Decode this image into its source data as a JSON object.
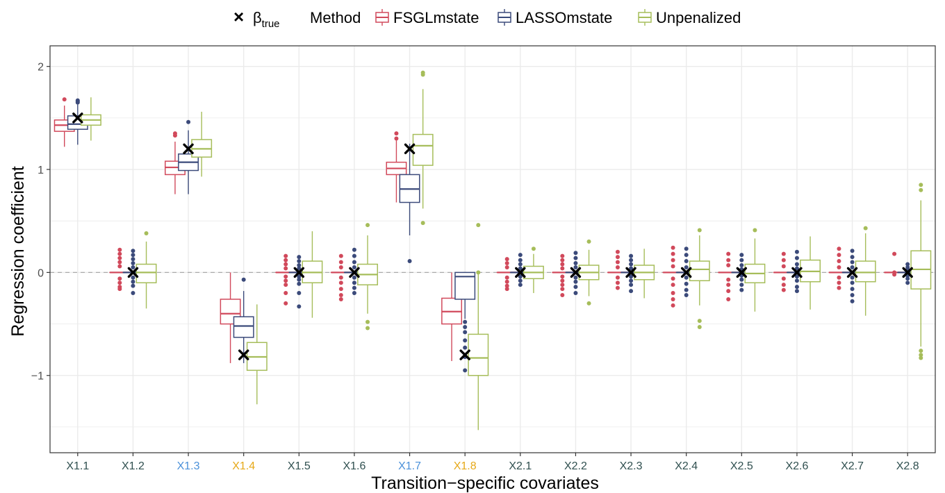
{
  "chart_data": {
    "type": "boxplot",
    "xlabel": "Transition−specific covariates",
    "ylabel": "Regression coefficient",
    "ylim": [
      -1.75,
      2.2
    ],
    "yticks": [
      -1,
      0,
      1,
      2
    ],
    "ytick_labels": [
      "−1",
      "0",
      "1",
      "2"
    ],
    "grid": true,
    "reference_line": 0,
    "legend": {
      "position": "top",
      "marker_symbol": "×",
      "marker_label_base": "β",
      "marker_label_sub": "true",
      "title": "Method"
    },
    "series": [
      {
        "name": "FSGLmstate",
        "color": "#d1495b"
      },
      {
        "name": "LASSOmstate",
        "color": "#3b4a7a"
      },
      {
        "name": "Unpenalized",
        "color": "#a6bd5a"
      }
    ],
    "categories": [
      {
        "label": "X1.1",
        "color": "#2f4f4f",
        "beta_true": 1.5,
        "boxes": [
          {
            "q1": 1.37,
            "median": 1.43,
            "q3": 1.48,
            "wlow": 1.22,
            "whigh": 1.62,
            "out": [
              1.68
            ]
          },
          {
            "q1": 1.39,
            "median": 1.44,
            "q3": 1.52,
            "wlow": 1.24,
            "whigh": 1.63,
            "out": [
              1.66,
              1.65,
              1.67
            ]
          },
          {
            "q1": 1.43,
            "median": 1.48,
            "q3": 1.53,
            "wlow": 1.28,
            "whigh": 1.7,
            "out": []
          }
        ]
      },
      {
        "label": "X1.2",
        "color": "#2f4f4f",
        "beta_true": 0,
        "boxes": [
          {
            "q1": 0,
            "median": 0,
            "q3": 0,
            "wlow": 0,
            "whigh": 0,
            "out": [
              0.22,
              0.18,
              0.14,
              0.1,
              0.06,
              -0.06,
              -0.1,
              -0.14,
              -0.16
            ]
          },
          {
            "q1": 0,
            "median": 0,
            "q3": 0,
            "wlow": 0,
            "whigh": 0,
            "out": [
              0.21,
              0.17,
              0.13,
              0.09,
              0.05,
              -0.05,
              -0.09,
              -0.13,
              -0.2
            ]
          },
          {
            "q1": -0.1,
            "median": 0,
            "q3": 0.08,
            "wlow": -0.35,
            "whigh": 0.3,
            "out": [
              0.38
            ]
          }
        ]
      },
      {
        "label": "X1.3",
        "color": "#4a90d9",
        "beta_true": 1.2,
        "boxes": [
          {
            "q1": 0.95,
            "median": 1.02,
            "q3": 1.08,
            "wlow": 0.76,
            "whigh": 1.27,
            "out": [
              1.33,
              1.35
            ]
          },
          {
            "q1": 0.99,
            "median": 1.07,
            "q3": 1.15,
            "wlow": 0.76,
            "whigh": 1.38,
            "out": [
              1.46
            ]
          },
          {
            "q1": 1.12,
            "median": 1.2,
            "q3": 1.29,
            "wlow": 0.93,
            "whigh": 1.56,
            "out": []
          }
        ]
      },
      {
        "label": "X1.4",
        "color": "#e6a817",
        "beta_true": -0.8,
        "boxes": [
          {
            "q1": -0.5,
            "median": -0.4,
            "q3": -0.26,
            "wlow": -0.88,
            "whigh": 0,
            "out": []
          },
          {
            "q1": -0.63,
            "median": -0.52,
            "q3": -0.43,
            "wlow": -0.88,
            "whigh": -0.18,
            "out": [
              -0.07
            ]
          },
          {
            "q1": -0.95,
            "median": -0.82,
            "q3": -0.68,
            "wlow": -1.28,
            "whigh": -0.31,
            "out": []
          }
        ]
      },
      {
        "label": "X1.5",
        "color": "#2f4f4f",
        "beta_true": 0,
        "boxes": [
          {
            "q1": 0,
            "median": 0,
            "q3": 0,
            "wlow": 0,
            "whigh": 0,
            "out": [
              0.16,
              0.12,
              0.08,
              0.04,
              -0.04,
              -0.08,
              -0.12,
              -0.2,
              -0.3
            ]
          },
          {
            "q1": 0,
            "median": 0,
            "q3": 0,
            "wlow": 0,
            "whigh": 0,
            "out": [
              0.15,
              0.11,
              0.07,
              0.04,
              -0.04,
              -0.07,
              -0.11,
              -0.2,
              -0.33
            ]
          },
          {
            "q1": -0.1,
            "median": 0,
            "q3": 0.11,
            "wlow": -0.44,
            "whigh": 0.4,
            "out": []
          }
        ]
      },
      {
        "label": "X1.6",
        "color": "#2f4f4f",
        "beta_true": 0,
        "boxes": [
          {
            "q1": 0,
            "median": 0,
            "q3": 0,
            "wlow": 0,
            "whigh": 0,
            "out": [
              0.16,
              0.1,
              0.05,
              -0.05,
              -0.1,
              -0.16,
              -0.22,
              -0.26
            ]
          },
          {
            "q1": 0,
            "median": 0,
            "q3": 0,
            "wlow": 0,
            "whigh": 0,
            "out": [
              0.22,
              0.16,
              0.1,
              0.05,
              -0.05,
              -0.1,
              -0.15,
              -0.2
            ]
          },
          {
            "q1": -0.12,
            "median": -0.02,
            "q3": 0.08,
            "wlow": -0.4,
            "whigh": 0.36,
            "out": [
              0.46,
              -0.48,
              -0.54
            ]
          }
        ]
      },
      {
        "label": "X1.7",
        "color": "#4a90d9",
        "beta_true": 1.2,
        "boxes": [
          {
            "q1": 0.95,
            "median": 1.01,
            "q3": 1.07,
            "wlow": 0.68,
            "whigh": 1.28,
            "out": [
              1.3,
              1.35
            ]
          },
          {
            "q1": 0.68,
            "median": 0.81,
            "q3": 0.95,
            "wlow": 0.36,
            "whigh": 1.25,
            "out": [
              0.11
            ]
          },
          {
            "q1": 1.04,
            "median": 1.23,
            "q3": 1.34,
            "wlow": 0.62,
            "whigh": 1.78,
            "out": [
              1.92,
              1.94,
              0.48
            ]
          }
        ]
      },
      {
        "label": "X1.8",
        "color": "#e6a817",
        "beta_true": -0.8,
        "boxes": [
          {
            "q1": -0.5,
            "median": -0.38,
            "q3": -0.25,
            "wlow": -0.86,
            "whigh": 0,
            "out": []
          },
          {
            "q1": -0.26,
            "median": -0.04,
            "q3": 0,
            "wlow": -0.45,
            "whigh": 0,
            "out": [
              -0.48,
              -0.53,
              -0.58,
              -0.66,
              -0.73,
              -0.82,
              -0.95
            ]
          },
          {
            "q1": -1.0,
            "median": -0.83,
            "q3": -0.6,
            "wlow": -1.53,
            "whigh": 0,
            "out": [
              0.46,
              0.0
            ]
          }
        ]
      },
      {
        "label": "X2.1",
        "color": "#2f4f4f",
        "beta_true": 0,
        "boxes": [
          {
            "q1": 0,
            "median": 0,
            "q3": 0,
            "wlow": 0,
            "whigh": 0,
            "out": [
              0.13,
              0.09,
              0.05,
              -0.05,
              -0.09,
              -0.13,
              -0.16
            ]
          },
          {
            "q1": 0,
            "median": 0,
            "q3": 0,
            "wlow": 0,
            "whigh": 0,
            "out": [
              0.17,
              0.12,
              0.08,
              0.04,
              -0.04,
              -0.08,
              -0.12
            ]
          },
          {
            "q1": -0.06,
            "median": 0,
            "q3": 0.06,
            "wlow": -0.2,
            "whigh": 0.18,
            "out": [
              0.23
            ]
          }
        ]
      },
      {
        "label": "X2.2",
        "color": "#2f4f4f",
        "beta_true": 0,
        "boxes": [
          {
            "q1": 0,
            "median": 0,
            "q3": 0,
            "wlow": 0,
            "whigh": 0,
            "out": [
              0.16,
              0.12,
              0.08,
              0.04,
              -0.04,
              -0.08,
              -0.12,
              -0.16,
              -0.22
            ]
          },
          {
            "q1": 0,
            "median": 0,
            "q3": 0,
            "wlow": 0,
            "whigh": 0,
            "out": [
              0.19,
              0.14,
              0.09,
              0.05,
              -0.05,
              -0.09,
              -0.14,
              -0.2
            ]
          },
          {
            "q1": -0.07,
            "median": 0,
            "q3": 0.07,
            "wlow": -0.23,
            "whigh": 0.22,
            "out": [
              0.3,
              -0.3
            ]
          }
        ]
      },
      {
        "label": "X2.3",
        "color": "#2f4f4f",
        "beta_true": 0,
        "boxes": [
          {
            "q1": 0,
            "median": 0,
            "q3": 0,
            "wlow": 0,
            "whigh": 0,
            "out": [
              0.2,
              0.15,
              0.1,
              0.05,
              -0.05,
              -0.1,
              -0.15
            ]
          },
          {
            "q1": 0,
            "median": 0,
            "q3": 0,
            "wlow": 0,
            "whigh": 0,
            "out": [
              0.16,
              0.12,
              0.08,
              0.04,
              -0.04,
              -0.08,
              -0.12,
              -0.18
            ]
          },
          {
            "q1": -0.07,
            "median": 0,
            "q3": 0.07,
            "wlow": -0.25,
            "whigh": 0.23,
            "out": []
          }
        ]
      },
      {
        "label": "X2.4",
        "color": "#2f4f4f",
        "beta_true": 0,
        "boxes": [
          {
            "q1": 0,
            "median": 0,
            "q3": 0,
            "wlow": 0,
            "whigh": 0,
            "out": [
              0.24,
              0.18,
              0.12,
              0.06,
              -0.06,
              -0.12,
              -0.2,
              -0.26,
              -0.32
            ]
          },
          {
            "q1": 0,
            "median": 0,
            "q3": 0,
            "wlow": 0,
            "whigh": 0,
            "out": [
              0.23,
              0.17,
              0.11,
              0.05,
              -0.05,
              -0.11,
              -0.17,
              -0.22
            ]
          },
          {
            "q1": -0.08,
            "median": 0.03,
            "q3": 0.11,
            "wlow": -0.32,
            "whigh": 0.36,
            "out": [
              0.41,
              -0.47,
              -0.53
            ]
          }
        ]
      },
      {
        "label": "X2.5",
        "color": "#2f4f4f",
        "beta_true": 0,
        "boxes": [
          {
            "q1": 0,
            "median": 0,
            "q3": 0,
            "wlow": 0,
            "whigh": 0,
            "out": [
              0.18,
              0.12,
              0.07,
              -0.07,
              -0.12,
              -0.18,
              -0.26
            ]
          },
          {
            "q1": 0,
            "median": 0,
            "q3": 0,
            "wlow": 0,
            "whigh": 0,
            "out": [
              0.17,
              0.12,
              0.07,
              0.03,
              -0.03,
              -0.07,
              -0.12,
              -0.17
            ]
          },
          {
            "q1": -0.1,
            "median": -0.01,
            "q3": 0.08,
            "wlow": -0.38,
            "whigh": 0.33,
            "out": [
              0.41
            ]
          }
        ]
      },
      {
        "label": "X2.6",
        "color": "#2f4f4f",
        "beta_true": 0,
        "boxes": [
          {
            "q1": 0,
            "median": 0,
            "q3": 0,
            "wlow": 0,
            "whigh": 0,
            "out": [
              0.18,
              0.12,
              0.06,
              -0.06,
              -0.12,
              -0.17
            ]
          },
          {
            "q1": 0,
            "median": 0,
            "q3": 0,
            "wlow": 0,
            "whigh": 0,
            "out": [
              0.2,
              0.14,
              0.08,
              0.04,
              -0.04,
              -0.08,
              -0.14,
              -0.18
            ]
          },
          {
            "q1": -0.09,
            "median": 0.01,
            "q3": 0.12,
            "wlow": -0.36,
            "whigh": 0.35,
            "out": []
          }
        ]
      },
      {
        "label": "X2.7",
        "color": "#2f4f4f",
        "beta_true": 0,
        "boxes": [
          {
            "q1": 0,
            "median": 0,
            "q3": 0,
            "wlow": 0,
            "whigh": 0,
            "out": [
              0.23,
              0.17,
              0.11,
              0.05,
              -0.05,
              -0.1,
              -0.15
            ]
          },
          {
            "q1": 0,
            "median": 0,
            "q3": 0,
            "wlow": 0,
            "whigh": 0,
            "out": [
              0.21,
              0.15,
              0.1,
              0.05,
              -0.05,
              -0.1,
              -0.16,
              -0.22,
              -0.28
            ]
          },
          {
            "q1": -0.09,
            "median": 0,
            "q3": 0.11,
            "wlow": -0.42,
            "whigh": 0.38,
            "out": [
              0.43
            ]
          }
        ]
      },
      {
        "label": "X2.8",
        "color": "#2f4f4f",
        "beta_true": 0,
        "boxes": [
          {
            "q1": 0,
            "median": 0,
            "q3": 0,
            "wlow": 0,
            "whigh": 0,
            "out": [
              0.18,
              0,
              -0.02
            ]
          },
          {
            "q1": 0,
            "median": 0,
            "q3": 0,
            "wlow": 0,
            "whigh": 0,
            "out": [
              0.08,
              0.05,
              0.03,
              -0.03,
              -0.06,
              -0.1
            ]
          },
          {
            "q1": -0.16,
            "median": 0.03,
            "q3": 0.21,
            "wlow": -0.72,
            "whigh": 0.7,
            "out": [
              0.8,
              0.85,
              -0.76,
              -0.8,
              -0.83
            ]
          }
        ]
      }
    ]
  }
}
